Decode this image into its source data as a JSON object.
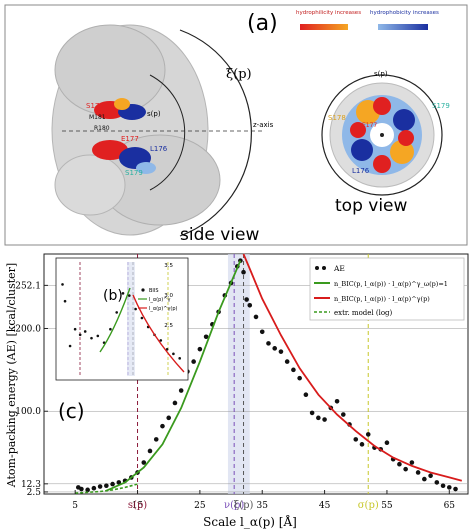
{
  "panel_a": {
    "label": "(a)",
    "side_view_caption": "side view",
    "top_view_caption": "top view",
    "xi_label": "ξ(p)",
    "s_label": "s(p)",
    "z_axis_label": "z-axis",
    "residues_side": [
      "S178",
      "M181",
      "R180",
      "E177",
      "L176",
      "S179"
    ],
    "residues_top": [
      "S179",
      "S178",
      "E177",
      "L176"
    ],
    "legend_left_title": "hydrophilicity increases",
    "legend_right_title": "hydrophobicity increases",
    "colors": {
      "hydrophilic_low": "#e02020",
      "hydrophilic_high": "#f5a623",
      "hydrophobic_low": "#8fb8e8",
      "hydrophobic_high": "#1a2fa0",
      "protein": "#d8d8d8"
    }
  },
  "panel_c": {
    "label": "(c)",
    "inset_label": "(b)",
    "legend": {
      "dots": "AE",
      "green": "n_BIC(p, l_α(p)) · l_α(p)^γ_ω(p)=1",
      "red": "n_BIC(p, l_α(p)) · l_α(p)^γ(p)",
      "dashed": "extr. model (log)"
    },
    "inset_legend": [
      "BIIS",
      "l_α(p)^γ",
      "l_α(p)^γ(p)"
    ],
    "inset_ytick_labels": [
      "3.5",
      "3.0",
      "2.5"
    ]
  },
  "chart_data": {
    "type": "scatter",
    "xlabel": "Scale l_α(p) [Å]",
    "ylabel": "Atom-packing energy (AE) [kcal/cluster]",
    "xlim": [
      0,
      68
    ],
    "ylim": [
      0,
      290
    ],
    "x_ticks": [
      5,
      15,
      25,
      35,
      45,
      55,
      65
    ],
    "x_tick_labels": [
      "5",
      "15",
      "25",
      "35",
      "45",
      "55",
      "65"
    ],
    "y_ticks": [
      2.5,
      12.3,
      100.0,
      200.0,
      252.1
    ],
    "y_tick_labels": [
      "2.5",
      "12.3",
      "100.0",
      "200.0",
      "252.1"
    ],
    "vertical_markers": [
      {
        "name": "s(p)",
        "x": 15.0,
        "color": "#8b1a3a",
        "style": "dashed"
      },
      {
        "name": "ν(p)",
        "x": 30.5,
        "color": "#7b4fb8",
        "style": "dashed"
      },
      {
        "name": "ξ(p)",
        "x": 32.0,
        "color": "#555555",
        "style": "dashed"
      },
      {
        "name": "σ(p)",
        "x": 52.0,
        "color": "#c7c72a",
        "style": "dashed"
      }
    ],
    "band": [
      29.5,
      33.0
    ],
    "series": [
      {
        "name": "AE",
        "kind": "dots",
        "color": "#111111",
        "x": [
          5.5,
          6,
          7,
          8,
          9,
          10,
          11,
          12,
          13,
          14,
          15,
          16,
          17,
          18,
          19,
          20,
          21,
          22,
          23,
          24,
          25,
          26,
          27,
          28,
          29,
          30,
          31,
          31.5,
          32,
          32.5,
          33,
          34,
          35,
          36,
          37,
          38,
          39,
          40,
          41,
          42,
          43,
          44,
          45,
          46,
          47,
          48,
          49,
          50,
          51,
          52,
          53,
          54,
          55,
          56,
          57,
          58,
          59,
          60,
          61,
          62,
          63,
          64,
          65,
          66
        ],
        "y": [
          8,
          6,
          5,
          7,
          9,
          10,
          12,
          14,
          16,
          20,
          26,
          38,
          52,
          66,
          82,
          92,
          110,
          125,
          148,
          160,
          175,
          190,
          205,
          220,
          240,
          255,
          275,
          282,
          268,
          235,
          228,
          214,
          196,
          182,
          176,
          172,
          160,
          150,
          140,
          120,
          98,
          92,
          90,
          104,
          112,
          96,
          84,
          66,
          60,
          72,
          56,
          54,
          62,
          42,
          36,
          30,
          38,
          26,
          18,
          22,
          14,
          10,
          8,
          6
        ]
      },
      {
        "name": "n_BIC(p, l_α(p)) · l_α(p)^γ_ω(p)=1",
        "kind": "line",
        "color": "#3a9a1e",
        "x": [
          10,
          13,
          16,
          19,
          22,
          25,
          28,
          31.5
        ],
        "y": [
          4,
          14,
          32,
          60,
          104,
          160,
          220,
          282
        ]
      },
      {
        "name": "n_BIC(p, l_α(p)) · l_α(p)^γ(p)",
        "kind": "line",
        "color": "#d81c1c",
        "x": [
          32,
          33,
          35,
          38,
          41,
          44,
          47,
          50,
          53,
          56,
          59,
          62,
          65,
          67
        ],
        "y": [
          290,
          272,
          236,
          192,
          152,
          120,
          96,
          76,
          58,
          44,
          34,
          26,
          20,
          16
        ]
      },
      {
        "name": "extr. model (log)",
        "kind": "dashed",
        "color": "#3a9a1e",
        "x": [
          5,
          7,
          9,
          11,
          13,
          15
        ],
        "y": [
          1,
          2,
          3,
          5,
          8,
          12
        ]
      }
    ]
  }
}
